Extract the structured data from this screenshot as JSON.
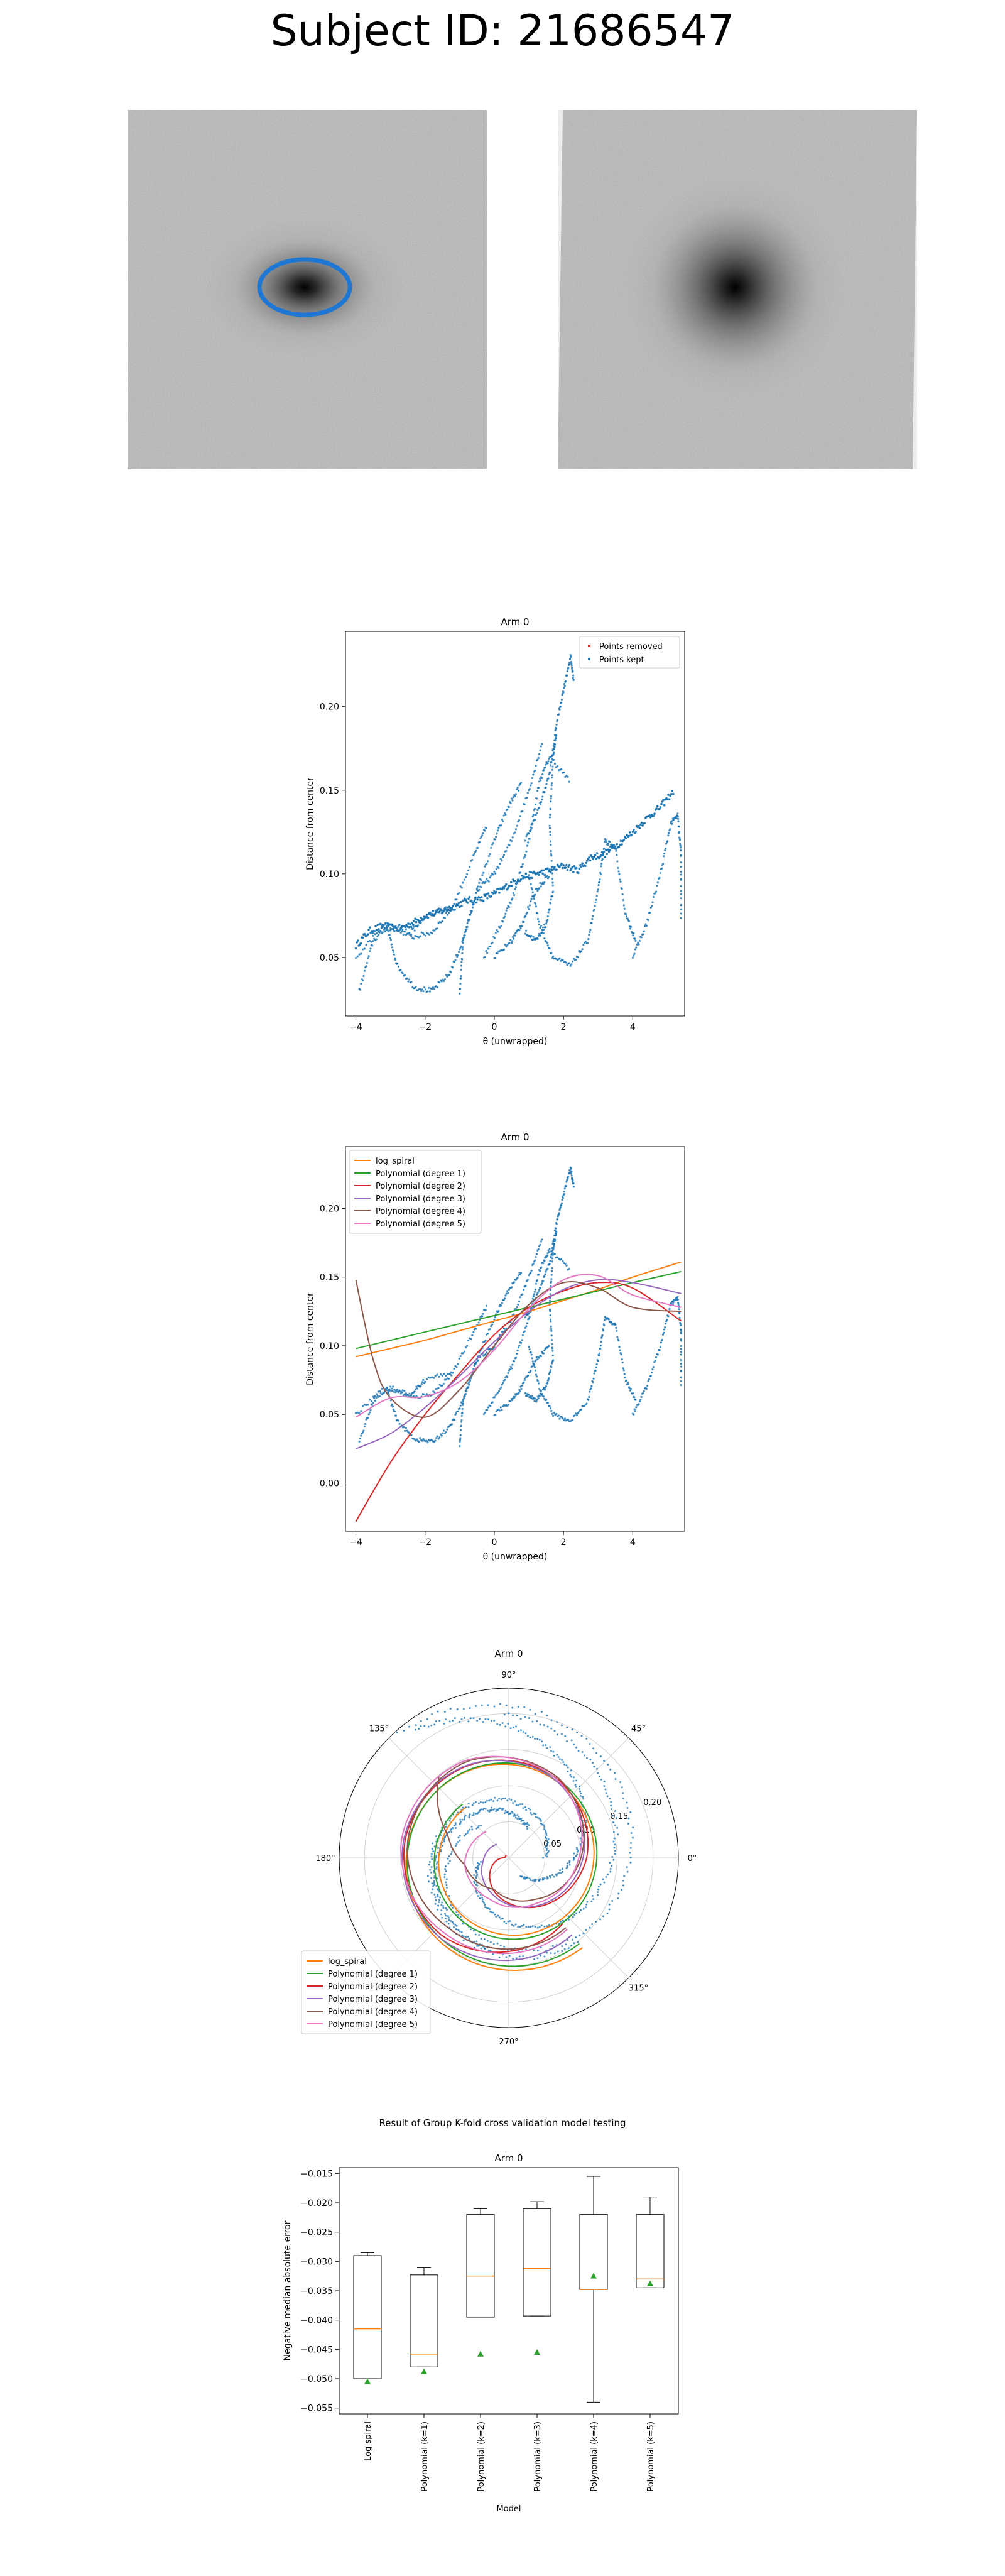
{
  "page_title": "Subject ID: 21686547",
  "cv_title": "Result of Group K-fold cross validation model testing",
  "colors": {
    "points": "#1f77b4",
    "log_spiral": "#ff7f0e",
    "poly1": "#2ca02c",
    "poly2": "#d62728",
    "poly3": "#9467bd",
    "poly4": "#8c564b",
    "poly5": "#e377c2",
    "median": "#ff7f0e",
    "mean": "#2ca02c"
  },
  "chart_data": [
    {
      "type": "scatter",
      "title": "Arm 0",
      "xlabel": "θ (unwrapped)",
      "ylabel": "Distance from center",
      "xlim": [
        -4.3,
        5.5
      ],
      "ylim": [
        0.015,
        0.245
      ],
      "xticks": [
        "−4",
        "−2",
        "0",
        "2",
        "4"
      ],
      "yticks": [
        "0.05",
        "0.10",
        "0.15",
        "0.20"
      ],
      "legend": {
        "position": "top-right",
        "entries": [
          "Points removed",
          "Points kept"
        ]
      },
      "series": [
        {
          "name": "Points kept",
          "x": [
            -4.0,
            -3.6,
            -3.2,
            -2.8,
            -2.4,
            -2.0,
            -1.6,
            -1.2,
            -0.8,
            -0.4,
            0.0,
            0.4,
            0.8,
            1.2,
            1.6,
            2.0,
            2.4,
            2.8,
            3.2,
            3.6,
            4.0,
            4.4,
            4.8,
            5.2
          ],
          "y": [
            0.057,
            0.066,
            0.069,
            0.067,
            0.07,
            0.075,
            0.077,
            0.08,
            0.084,
            0.085,
            0.088,
            0.093,
            0.098,
            0.1,
            0.102,
            0.105,
            0.102,
            0.11,
            0.112,
            0.118,
            0.125,
            0.133,
            0.14,
            0.15
          ]
        }
      ]
    },
    {
      "type": "line",
      "title": "Arm 0",
      "xlabel": "θ (unwrapped)",
      "ylabel": "Distance from center",
      "xlim": [
        -4.3,
        5.5
      ],
      "ylim": [
        -0.035,
        0.245
      ],
      "xticks": [
        "−4",
        "−2",
        "0",
        "2",
        "4"
      ],
      "yticks": [
        "0.00",
        "0.05",
        "0.10",
        "0.15",
        "0.20"
      ],
      "legend": {
        "position": "top-left",
        "entries": [
          "log_spiral",
          "Polynomial (degree 1)",
          "Polynomial (degree 2)",
          "Polynomial (degree 3)",
          "Polynomial (degree 4)",
          "Polynomial (degree 5)"
        ]
      },
      "series": [
        {
          "name": "log_spiral",
          "x": [
            -4,
            -3,
            -2,
            -1,
            0,
            1,
            2,
            3,
            4,
            5.4
          ],
          "y": [
            0.092,
            0.098,
            0.104,
            0.111,
            0.118,
            0.125,
            0.133,
            0.141,
            0.15,
            0.161
          ]
        },
        {
          "name": "Polynomial (degree 1)",
          "x": [
            -4,
            -3,
            -2,
            -1,
            0,
            1,
            2,
            3,
            4,
            5.4
          ],
          "y": [
            0.098,
            0.104,
            0.11,
            0.116,
            0.122,
            0.128,
            0.134,
            0.14,
            0.146,
            0.154
          ]
        },
        {
          "name": "Polynomial (degree 2)",
          "x": [
            -4,
            -3,
            -2,
            -1,
            0,
            1,
            2,
            3,
            4,
            5.4
          ],
          "y": [
            -0.028,
            0.015,
            0.05,
            0.08,
            0.108,
            0.128,
            0.14,
            0.146,
            0.142,
            0.118
          ]
        },
        {
          "name": "Polynomial (degree 3)",
          "x": [
            -4,
            -3,
            -2,
            -1,
            0,
            1,
            2,
            3,
            4,
            5.4
          ],
          "y": [
            0.025,
            0.036,
            0.055,
            0.078,
            0.103,
            0.125,
            0.141,
            0.148,
            0.146,
            0.138
          ]
        },
        {
          "name": "Polynomial (degree 4)",
          "x": [
            -4,
            -3.5,
            -3,
            -2,
            -1,
            0,
            1,
            2,
            3,
            4,
            5.4
          ],
          "y": [
            0.148,
            0.09,
            0.062,
            0.048,
            0.068,
            0.1,
            0.13,
            0.146,
            0.142,
            0.128,
            0.125
          ]
        },
        {
          "name": "Polynomial (degree 5)",
          "x": [
            -4,
            -3,
            -2,
            -1,
            0,
            1,
            2,
            3,
            4,
            5.4
          ],
          "y": [
            0.048,
            0.062,
            0.063,
            0.074,
            0.097,
            0.127,
            0.148,
            0.151,
            0.137,
            0.128
          ]
        }
      ]
    },
    {
      "type": "polar",
      "title": "Arm 0",
      "rticks": [
        "0.05",
        "0.10",
        "0.15",
        "0.20"
      ],
      "rmax": 0.235,
      "angle_labels": [
        "0°",
        "45°",
        "90°",
        "135°",
        "180°",
        "225°",
        "270°",
        "315°"
      ],
      "legend": {
        "position": "lower-left",
        "entries": [
          "log_spiral",
          "Polynomial (degree 1)",
          "Polynomial (degree 2)",
          "Polynomial (degree 3)",
          "Polynomial (degree 4)",
          "Polynomial (degree 5)"
        ]
      }
    },
    {
      "type": "box",
      "title": "Arm 0",
      "xlabel": "Model",
      "ylabel": "Negative median absolute error",
      "ylim": [
        -0.056,
        -0.014
      ],
      "yticks": [
        "−0.015",
        "−0.020",
        "−0.025",
        "−0.030",
        "−0.035",
        "−0.040",
        "−0.045",
        "−0.050",
        "−0.055"
      ],
      "categories": [
        "Log spiral",
        "Polynomial (k=1)",
        "Polynomial (k=2)",
        "Polynomial (k=3)",
        "Polynomial (k=4)",
        "Polynomial (k=5)"
      ],
      "boxes": [
        {
          "whislo": -0.05,
          "q1": -0.05,
          "med": -0.0415,
          "q3": -0.029,
          "whishi": -0.0285,
          "mean": -0.0505
        },
        {
          "whislo": -0.048,
          "q1": -0.048,
          "med": -0.0458,
          "q3": -0.0323,
          "whishi": -0.031,
          "mean": -0.0488
        },
        {
          "whislo": -0.0395,
          "q1": -0.0395,
          "med": -0.0325,
          "q3": -0.022,
          "whishi": -0.021,
          "mean": -0.0458
        },
        {
          "whislo": -0.0393,
          "q1": -0.0393,
          "med": -0.0312,
          "q3": -0.021,
          "whishi": -0.0198,
          "mean": -0.0455
        },
        {
          "whislo": -0.054,
          "q1": -0.0348,
          "med": -0.0348,
          "q3": -0.022,
          "whishi": -0.0155,
          "mean": -0.0325
        },
        {
          "whislo": -0.0345,
          "q1": -0.0345,
          "med": -0.033,
          "q3": -0.022,
          "whishi": -0.019,
          "mean": -0.0338
        }
      ]
    }
  ]
}
